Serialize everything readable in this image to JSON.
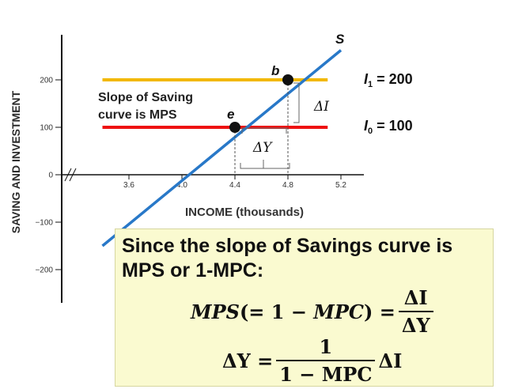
{
  "chart_data": {
    "type": "line",
    "ylabel": "SAVING AND INVESTMENT",
    "xlabel": "INCOME (thousands)",
    "x_ticks": [
      "3.6",
      "4.0",
      "4.4",
      "4.8",
      "5.2"
    ],
    "y_ticks": [
      "200",
      "100",
      "0",
      "−100",
      "−200"
    ],
    "xlim": [
      3.4,
      5.35
    ],
    "ylim": [
      -230,
      260
    ],
    "series": [
      {
        "name": "S",
        "type": "line",
        "color": "#2878c8",
        "x": [
          3.4,
          5.2
        ],
        "y": [
          -150,
          262.5
        ]
      },
      {
        "name": "I1 = 200",
        "type": "hline",
        "color": "#f2b800",
        "y": 200,
        "x": [
          3.4,
          5.1
        ]
      },
      {
        "name": "I0 = 100",
        "type": "hline",
        "color": "#ee1111",
        "y": 100,
        "x": [
          3.4,
          5.1
        ]
      }
    ],
    "points": [
      {
        "label": "b",
        "x": 4.8,
        "y": 200
      },
      {
        "label": "e",
        "x": 4.4,
        "y": 100
      }
    ],
    "annotations": {
      "slope_note": [
        "Slope of Saving",
        "curve is MPS"
      ],
      "delta_i": "ΔI",
      "delta_y": "ΔY",
      "s_label": "S",
      "i1_letter": "I",
      "i1_sub": "1",
      "i1_value": " = 200",
      "i0_letter": "I",
      "i0_sub": "0",
      "i0_value": " = 100"
    }
  },
  "formula_box": {
    "heading": "Since the slope of Savings curve is MPS or 1-MPC:",
    "eq1_lhs": "MPS",
    "eq1_paren": "(= 1 − ",
    "eq1_mpc": "MPC",
    "eq1_close": ") =",
    "eq1_num": "ΔI",
    "eq1_den": "ΔY",
    "eq2_lhs": "ΔY =",
    "eq2_num": "1",
    "eq2_den": "1 − MPC",
    "eq2_rhs": "ΔI"
  },
  "colors": {
    "saving_curve": "#2878c8",
    "investment_1": "#f2b800",
    "investment_0": "#ee1111",
    "formula_background": "#fafad0"
  }
}
